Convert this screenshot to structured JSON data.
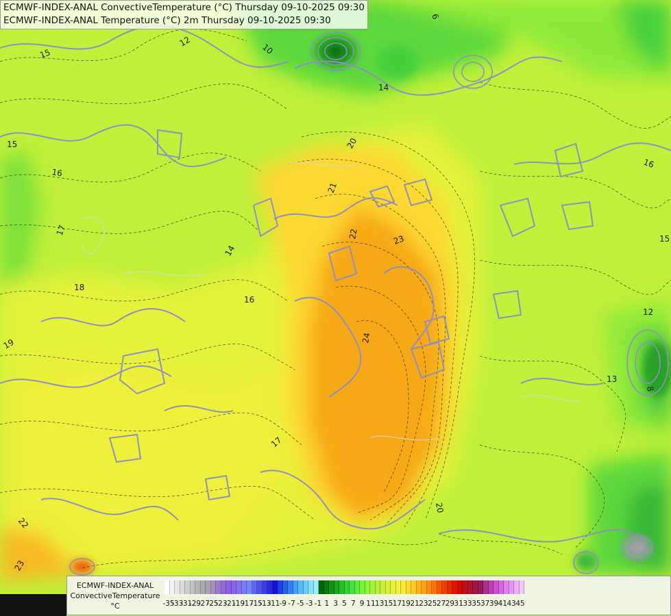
{
  "titles": {
    "line1": "ECMWF-INDEX-ANAL ConvectiveTemperature (°C) Thursday 09-10-2025 09:30",
    "line2": "ECMWF-INDEX-ANAL Temperature (°C) 2m Thursday 09-10-2025 09:30"
  },
  "legend": {
    "name_line1": "ECMWF-INDEX-ANAL",
    "name_line2": "ConvectiveTemperature",
    "unit": "°C",
    "ticks": [
      "-35",
      "-33",
      "-31",
      "-29",
      "-27",
      "-25",
      "-23",
      "-21",
      "-19",
      "-17",
      "-15",
      "-13",
      "-11",
      "-9",
      "-7",
      "-5",
      "-3",
      "-1",
      "1",
      "3",
      "5",
      "7",
      "9",
      "11",
      "13",
      "15",
      "17",
      "19",
      "21",
      "23",
      "25",
      "27",
      "29",
      "31",
      "33",
      "35",
      "37",
      "39",
      "41",
      "43",
      "45"
    ],
    "colors": [
      "#ffffff",
      "#f2f2f2",
      "#e6e6e6",
      "#dadada",
      "#cecece",
      "#c2c2c2",
      "#b6b6b6",
      "#aaaaaa",
      "#a9a0b4",
      "#a48ec0",
      "#9c7ad0",
      "#9466dc",
      "#8e5ee6",
      "#8a63ee",
      "#8470f2",
      "#7c7cf6",
      "#7088f8",
      "#5f66f0",
      "#4f52ea",
      "#3c3ce4",
      "#2828de",
      "#1414d8",
      "#1e40e0",
      "#2860e8",
      "#3480f0",
      "#44a0f6",
      "#58b8f8",
      "#6ccef8",
      "#84e2f8",
      "#9ceefa",
      "#006400",
      "#0a7a0a",
      "#149014",
      "#1ea61e",
      "#28bc28",
      "#32d232",
      "#44e044",
      "#5cec3c",
      "#76f23a",
      "#8ef63a",
      "#a4f03a",
      "#b8ee3a",
      "#c8ef3a",
      "#d8f03a",
      "#e6f03a",
      "#f2f03a",
      "#fae838",
      "#fcd830",
      "#fdc628",
      "#feb420",
      "#fea018",
      "#fc8c10",
      "#f87408",
      "#f45a04",
      "#ee4000",
      "#e62a00",
      "#dc1600",
      "#d00a0a",
      "#c0101c",
      "#b01430",
      "#a01844",
      "#90205a",
      "#a83090",
      "#bc40b4",
      "#cc50d0",
      "#d868e0",
      "#e080ec",
      "#e898f4",
      "#eeb0f8",
      "#f4c8fa"
    ]
  },
  "contour_labels": [
    "10",
    "12",
    "14",
    "15",
    "15",
    "16",
    "17",
    "18",
    "19",
    "20",
    "21",
    "22",
    "23",
    "24",
    "20",
    "17",
    "13",
    "12",
    "15",
    "16",
    "14",
    "16",
    "6",
    "8",
    "22",
    "23"
  ],
  "map_colors": {
    "cool": "#5bd83a",
    "mid": "#b5ee3a",
    "warm": "#e9f23a",
    "hot": "#fcd830",
    "core": "#f7a818",
    "border": "#8f8fbf",
    "coast": "#d0d0d0"
  }
}
